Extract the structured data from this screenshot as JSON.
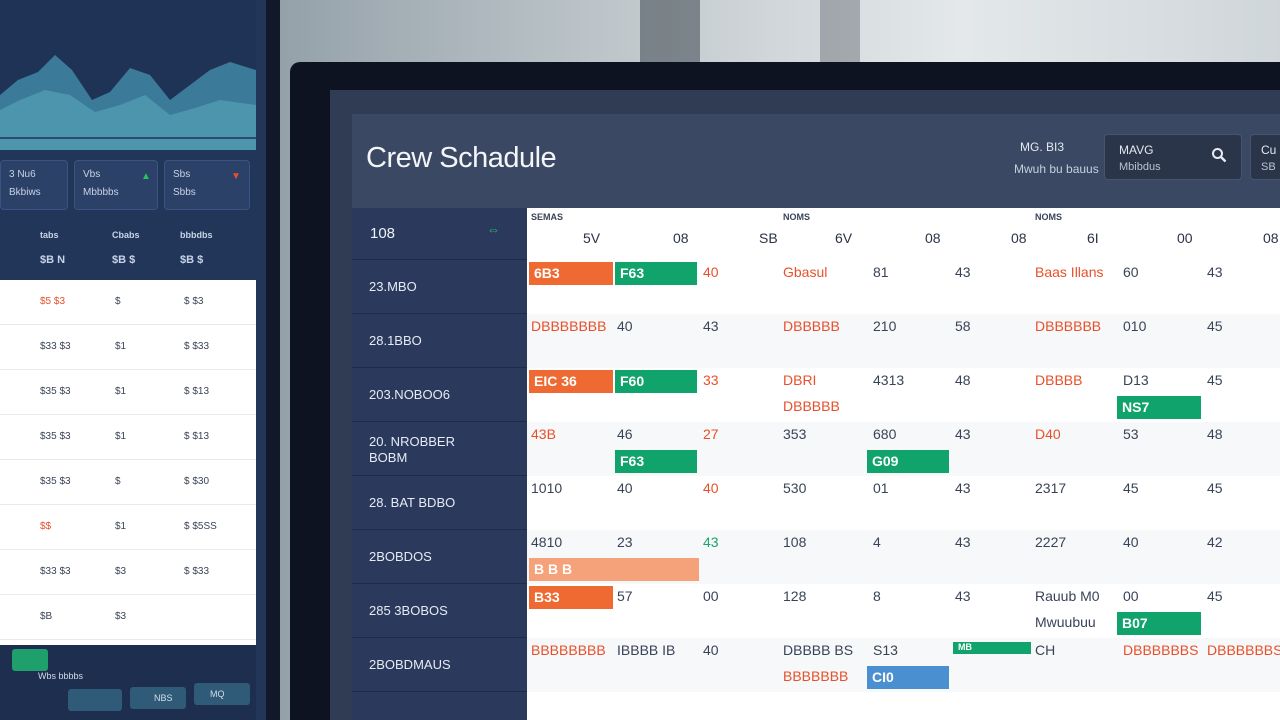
{
  "left_panel": {
    "cards": [
      {
        "l1": "3 Nu6",
        "l2": "Bkbiws"
      },
      {
        "l1": "Vbs",
        "l2": "Mbbbbs"
      },
      {
        "l1": "Sbs",
        "l2": "Sbbs"
      }
    ],
    "col_heads": [
      "tabs",
      "Cbabs",
      "bbbdbs"
    ],
    "col_sub": [
      "$B  N",
      "$B  $",
      "$B  $"
    ],
    "rows": [
      [
        "$5 $3",
        "$",
        "$ $3"
      ],
      [
        "$33 $3",
        "$1",
        "$ $33"
      ],
      [
        "$35 $3",
        "$1",
        "$ $13"
      ],
      [
        "$35 $3",
        "$1",
        "$ $13"
      ],
      [
        "$35 $3",
        "$",
        "$ $30"
      ],
      [
        "$$",
        "$1",
        "$ $5SS"
      ],
      [
        "$33 $3",
        "$3",
        "$ $33"
      ],
      [
        "$B",
        "$3",
        ""
      ]
    ],
    "footer": [
      "Wbs bbbbs",
      "MQ",
      "NBS"
    ]
  },
  "header": {
    "title": "Crew Schadule",
    "user_line1": "MG. BI3",
    "user_line2": "Mwuh bu bauus",
    "search_line1": "MAVG",
    "search_line2": "Mbibdus",
    "extra_line1": "Cu",
    "extra_line2": "SB"
  },
  "grid": {
    "crew_header": "108",
    "days": [
      {
        "label": "SEMAS",
        "sub": [
          "5V",
          "08",
          "SB"
        ]
      },
      {
        "label": "NOMS",
        "sub": [
          "6V",
          "08",
          "08"
        ]
      },
      {
        "label": "NOMS",
        "sub": [
          "6I",
          "00",
          "08"
        ]
      }
    ],
    "crew": [
      {
        "l1": "23.MBO"
      },
      {
        "l1": "28.1BBO"
      },
      {
        "l1": "203.NOBOO6"
      },
      {
        "l1": "20. NROBBER",
        "l2": "BOBM"
      },
      {
        "l1": "28. BAT BDBO"
      },
      {
        "l1": "2BOBDOS"
      },
      {
        "l1": "285 3BOBOS"
      },
      {
        "l1": "2BOBDMAUS"
      }
    ],
    "rows": [
      {
        "d1_bar1": "6B3",
        "d1_bar2": "F63",
        "d1_c3": "40",
        "d2_c1": "Gbasul",
        "d2_c2": "81",
        "d2_c3": "43",
        "d3_c1": "Baas Illans",
        "d3_c2": "60",
        "d3_c3": "43"
      },
      {
        "d1_c1": "DBBBBBBB",
        "d1_c2": "40",
        "d1_c3": "43",
        "d2_c1": "DBBBBB",
        "d2_c2": "210",
        "d2_c3": "58",
        "d3_c1": "DBBBBBB",
        "d3_c2": "010",
        "d3_c3": "45"
      },
      {
        "d1_bar1": "EIC 36",
        "d1_bar2": "F60",
        "d1_c3": "33",
        "d2_c1": "DBRI",
        "d2_c1b": "DBBBBB",
        "d2_c2": "4313",
        "d2_c3": "48",
        "d3_c1": "DBBBB",
        "d3_c2": "D13",
        "d3_c3": "45",
        "d3_bar": "NS7"
      },
      {
        "d1_c1": "43B",
        "d1_c2": "46",
        "d1_c3": "27",
        "d1_bar": "F63",
        "d2_c1": "353",
        "d2_c2": "680",
        "d2_c3": "43",
        "d2_bar": "G09",
        "d3_c1": "D40",
        "d3_c2": "53",
        "d3_c3": "48"
      },
      {
        "d1_c1": "1010",
        "d1_c2": "40",
        "d1_c3": "40",
        "d2_c1": "530",
        "d2_c2": "01",
        "d2_c3": "43",
        "d3_c1": "2317",
        "d3_c2": "45",
        "d3_c3": "45"
      },
      {
        "d1_c1": "4810",
        "d1_c2": "23",
        "d1_c3": "43",
        "d2_c1": "108",
        "d2_c2": "4",
        "d2_c3": "43",
        "d3_c1": "2227",
        "d3_c2": "40",
        "d3_c3": "42",
        "d1_peach": "B  B  B"
      },
      {
        "d1_bar1": "B33",
        "d1_c2": "57",
        "d1_c3": "00",
        "d2_c1": "128",
        "d2_c2": "8",
        "d2_c3": "43",
        "d3_c1": "Rauub M0",
        "d3_c1b": "Mwuubuu",
        "d3_c2": "00",
        "d3_c3": "45",
        "d3_bar": "B07"
      },
      {
        "d1_c1": "BBBBBBBB",
        "d1_c2": "IBBBB IB",
        "d1_c3": "40",
        "d2_c1": "DBBBB BS",
        "d2_c1b": "BBBBBBB",
        "d2_c2": "S13",
        "d2_c3": "",
        "d2_bar": "CI0",
        "d2_green": "MB",
        "d3_c1": "CH",
        "d3_c2": "DBBBBBBS",
        "d3_c3": "DBBBBBBS"
      }
    ]
  },
  "colors": {
    "orange": "#ee6a32",
    "green": "#11a36c",
    "peach": "#f5a27b",
    "blue": "#4a90d0",
    "header_bg": "#3b4863",
    "crew_bg": "#2b3a5c"
  }
}
